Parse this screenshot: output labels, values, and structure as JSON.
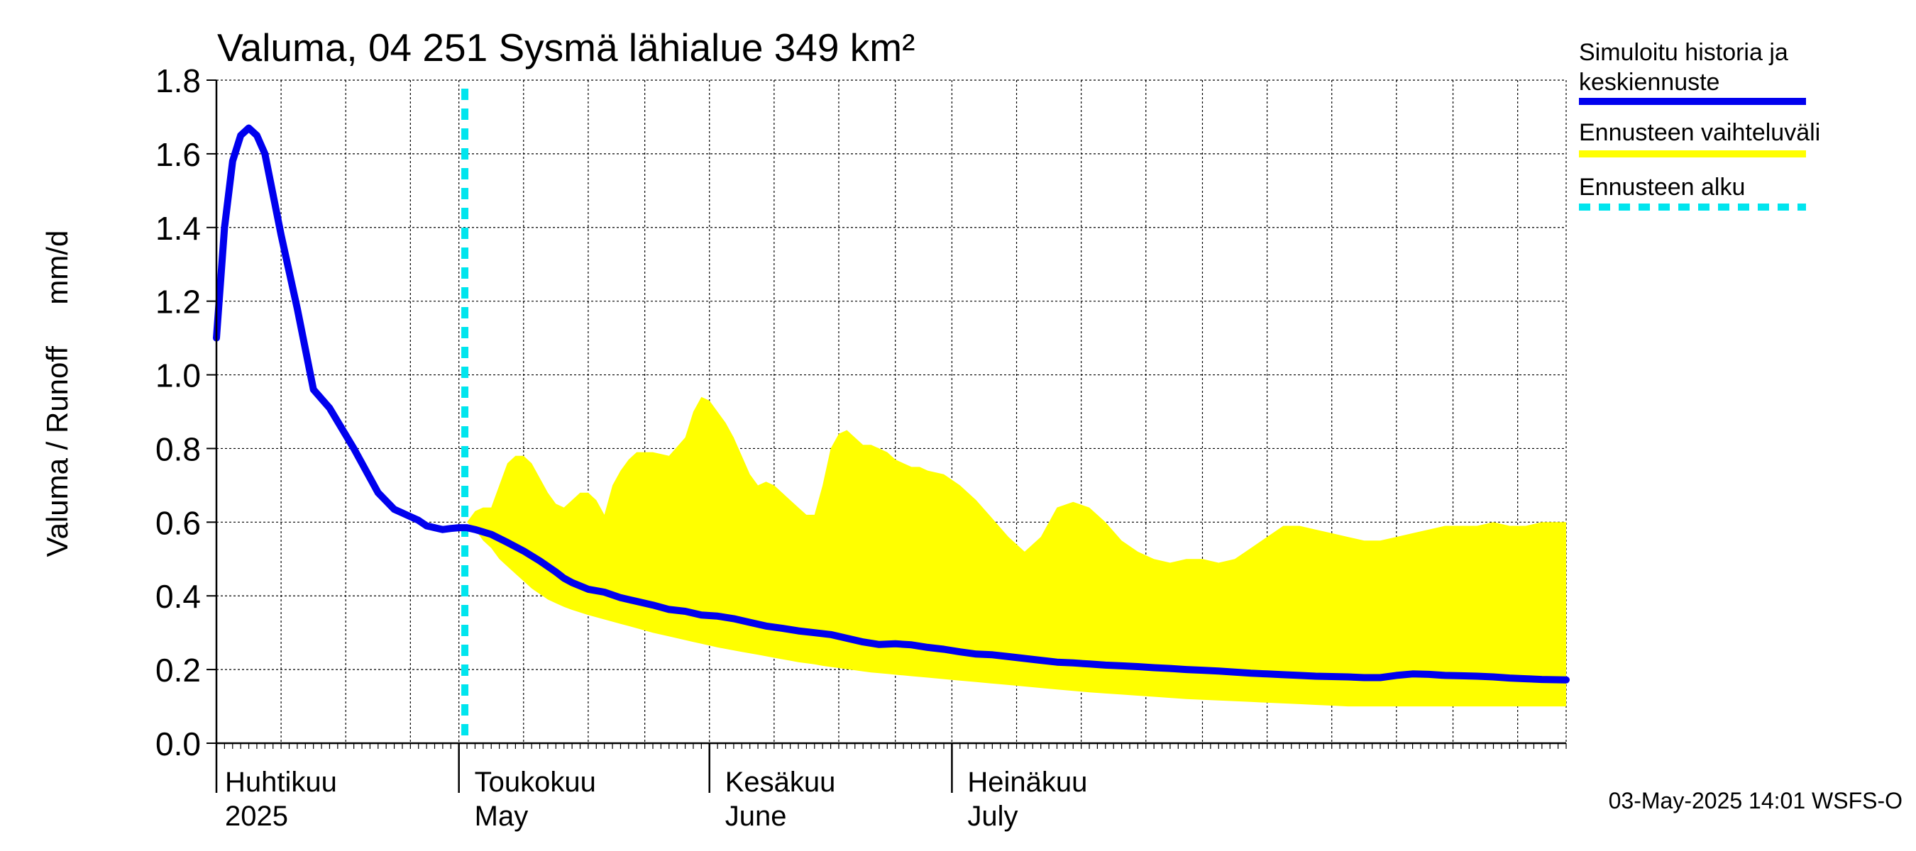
{
  "chart_data": {
    "type": "area",
    "title": "Valuma, 04 251 Sysmä lähialue 349 km²",
    "ylabel": "Valuma / Runoff     mm/d",
    "xlabel": "",
    "ylim": [
      0,
      1.8
    ],
    "yticks": [
      "0.0",
      "0.2",
      "0.4",
      "0.6",
      "0.8",
      "1.0",
      "1.2",
      "1.4",
      "1.6",
      "1.8"
    ],
    "x_start": "2025-04-01",
    "x_days": 167,
    "months": [
      {
        "day": 0,
        "label_fi": "Huhtikuu",
        "label_en": "2025"
      },
      {
        "day": 30,
        "label_fi": "Toukokuu",
        "label_en": "May"
      },
      {
        "day": 61,
        "label_fi": "Kesäkuu",
        "label_en": "June"
      },
      {
        "day": 91,
        "label_fi": "Heinäkuu",
        "label_en": "July"
      }
    ],
    "forecast_start_day": 31,
    "series": [
      {
        "name": "Simuloitu historia ja keskiennuste",
        "color": "#0000ee",
        "x": [
          0,
          1,
          2,
          3,
          4,
          5,
          6,
          8,
          10,
          12,
          14,
          17,
          20,
          22,
          24,
          25,
          26,
          28,
          29,
          30,
          31,
          32,
          34,
          36,
          38,
          40,
          42,
          43,
          44,
          46,
          48,
          50,
          52,
          54,
          56,
          58,
          60,
          62,
          64,
          66,
          68,
          70,
          72,
          74,
          76,
          78,
          80,
          82,
          84,
          86,
          88,
          90,
          92,
          94,
          96,
          98,
          100,
          102,
          104,
          106,
          108,
          110,
          112,
          114,
          116,
          118,
          120,
          122,
          124,
          126,
          128,
          130,
          132,
          134,
          136,
          138,
          140,
          142,
          144,
          146,
          148,
          150,
          152,
          154,
          156,
          158,
          160,
          162,
          164,
          167
        ],
        "values": [
          1.1,
          1.4,
          1.58,
          1.65,
          1.67,
          1.65,
          1.6,
          1.38,
          1.18,
          0.96,
          0.91,
          0.8,
          0.68,
          0.635,
          0.615,
          0.605,
          0.59,
          0.58,
          0.583,
          0.585,
          0.585,
          0.58,
          0.567,
          0.545,
          0.522,
          0.495,
          0.465,
          0.448,
          0.436,
          0.418,
          0.41,
          0.395,
          0.385,
          0.375,
          0.363,
          0.358,
          0.348,
          0.345,
          0.338,
          0.328,
          0.318,
          0.312,
          0.305,
          0.3,
          0.295,
          0.285,
          0.275,
          0.268,
          0.27,
          0.267,
          0.26,
          0.255,
          0.248,
          0.242,
          0.24,
          0.235,
          0.23,
          0.225,
          0.22,
          0.218,
          0.215,
          0.212,
          0.21,
          0.208,
          0.205,
          0.203,
          0.2,
          0.198,
          0.196,
          0.193,
          0.19,
          0.188,
          0.186,
          0.184,
          0.182,
          0.181,
          0.18,
          0.178,
          0.178,
          0.184,
          0.188,
          0.187,
          0.184,
          0.183,
          0.182,
          0.18,
          0.177,
          0.175,
          0.173,
          0.172
        ]
      },
      {
        "name": "Ennusteen vaihteluväli",
        "color": "#ffff00",
        "x": [
          31,
          32,
          33,
          34,
          35,
          36,
          37,
          38,
          39,
          40,
          41,
          42,
          43,
          44,
          45,
          46,
          47,
          48,
          49,
          50,
          51,
          52,
          54,
          56,
          58,
          59,
          60,
          61,
          62,
          63,
          64,
          65,
          66,
          67,
          68,
          69,
          70,
          71,
          72,
          73,
          74,
          75,
          76,
          77,
          78,
          79,
          80,
          81,
          82,
          83,
          84,
          85,
          86,
          87,
          88,
          90,
          92,
          94,
          96,
          98,
          100,
          102,
          104,
          106,
          108,
          110,
          112,
          114,
          116,
          118,
          120,
          122,
          124,
          126,
          128,
          130,
          132,
          134,
          136,
          138,
          140,
          142,
          144,
          146,
          148,
          150,
          152,
          154,
          156,
          158,
          160,
          162,
          164,
          167
        ],
        "upper": [
          0.6,
          0.63,
          0.64,
          0.64,
          0.7,
          0.76,
          0.78,
          0.78,
          0.76,
          0.72,
          0.68,
          0.65,
          0.64,
          0.66,
          0.68,
          0.68,
          0.66,
          0.62,
          0.7,
          0.74,
          0.77,
          0.79,
          0.79,
          0.78,
          0.83,
          0.9,
          0.94,
          0.93,
          0.9,
          0.87,
          0.83,
          0.78,
          0.73,
          0.7,
          0.71,
          0.7,
          0.68,
          0.66,
          0.64,
          0.62,
          0.62,
          0.7,
          0.8,
          0.84,
          0.85,
          0.83,
          0.81,
          0.81,
          0.8,
          0.79,
          0.77,
          0.76,
          0.75,
          0.75,
          0.74,
          0.73,
          0.7,
          0.66,
          0.61,
          0.56,
          0.52,
          0.56,
          0.64,
          0.655,
          0.64,
          0.6,
          0.55,
          0.52,
          0.5,
          0.49,
          0.5,
          0.5,
          0.49,
          0.5,
          0.53,
          0.56,
          0.59,
          0.59,
          0.58,
          0.57,
          0.56,
          0.55,
          0.55,
          0.56,
          0.57,
          0.58,
          0.59,
          0.59,
          0.59,
          0.6,
          0.59,
          0.59,
          0.6,
          0.6
        ],
        "lower": [
          0.6,
          0.58,
          0.55,
          0.53,
          0.5,
          0.48,
          0.46,
          0.44,
          0.42,
          0.405,
          0.39,
          0.38,
          0.37,
          0.362,
          0.355,
          0.348,
          0.342,
          0.336,
          0.33,
          0.324,
          0.318,
          0.312,
          0.3,
          0.29,
          0.28,
          0.275,
          0.27,
          0.265,
          0.26,
          0.256,
          0.252,
          0.248,
          0.244,
          0.24,
          0.236,
          0.232,
          0.228,
          0.224,
          0.22,
          0.217,
          0.214,
          0.21,
          0.207,
          0.204,
          0.201,
          0.198,
          0.195,
          0.192,
          0.19,
          0.188,
          0.186,
          0.184,
          0.182,
          0.18,
          0.178,
          0.174,
          0.17,
          0.166,
          0.162,
          0.158,
          0.154,
          0.15,
          0.146,
          0.142,
          0.138,
          0.135,
          0.132,
          0.129,
          0.126,
          0.123,
          0.12,
          0.118,
          0.116,
          0.114,
          0.112,
          0.11,
          0.108,
          0.106,
          0.104,
          0.102,
          0.1,
          0.1,
          0.1,
          0.1,
          0.1,
          0.1,
          0.1,
          0.1,
          0.1,
          0.1,
          0.1,
          0.1,
          0.1,
          0.1
        ]
      }
    ],
    "legend": [
      {
        "label_lines": [
          "Simuloitu historia ja",
          "keskiennuste"
        ],
        "color": "#0000ee",
        "style": "solid"
      },
      {
        "label_lines": [
          "Ennusteen vaihteluväli"
        ],
        "color": "#ffff00",
        "style": "solid"
      },
      {
        "label_lines": [
          "Ennusteen alku"
        ],
        "color": "#00e5ee",
        "style": "dashed"
      }
    ],
    "legend_position": "right",
    "footer": "03-May-2025 14:01 WSFS-O",
    "grid": true
  }
}
